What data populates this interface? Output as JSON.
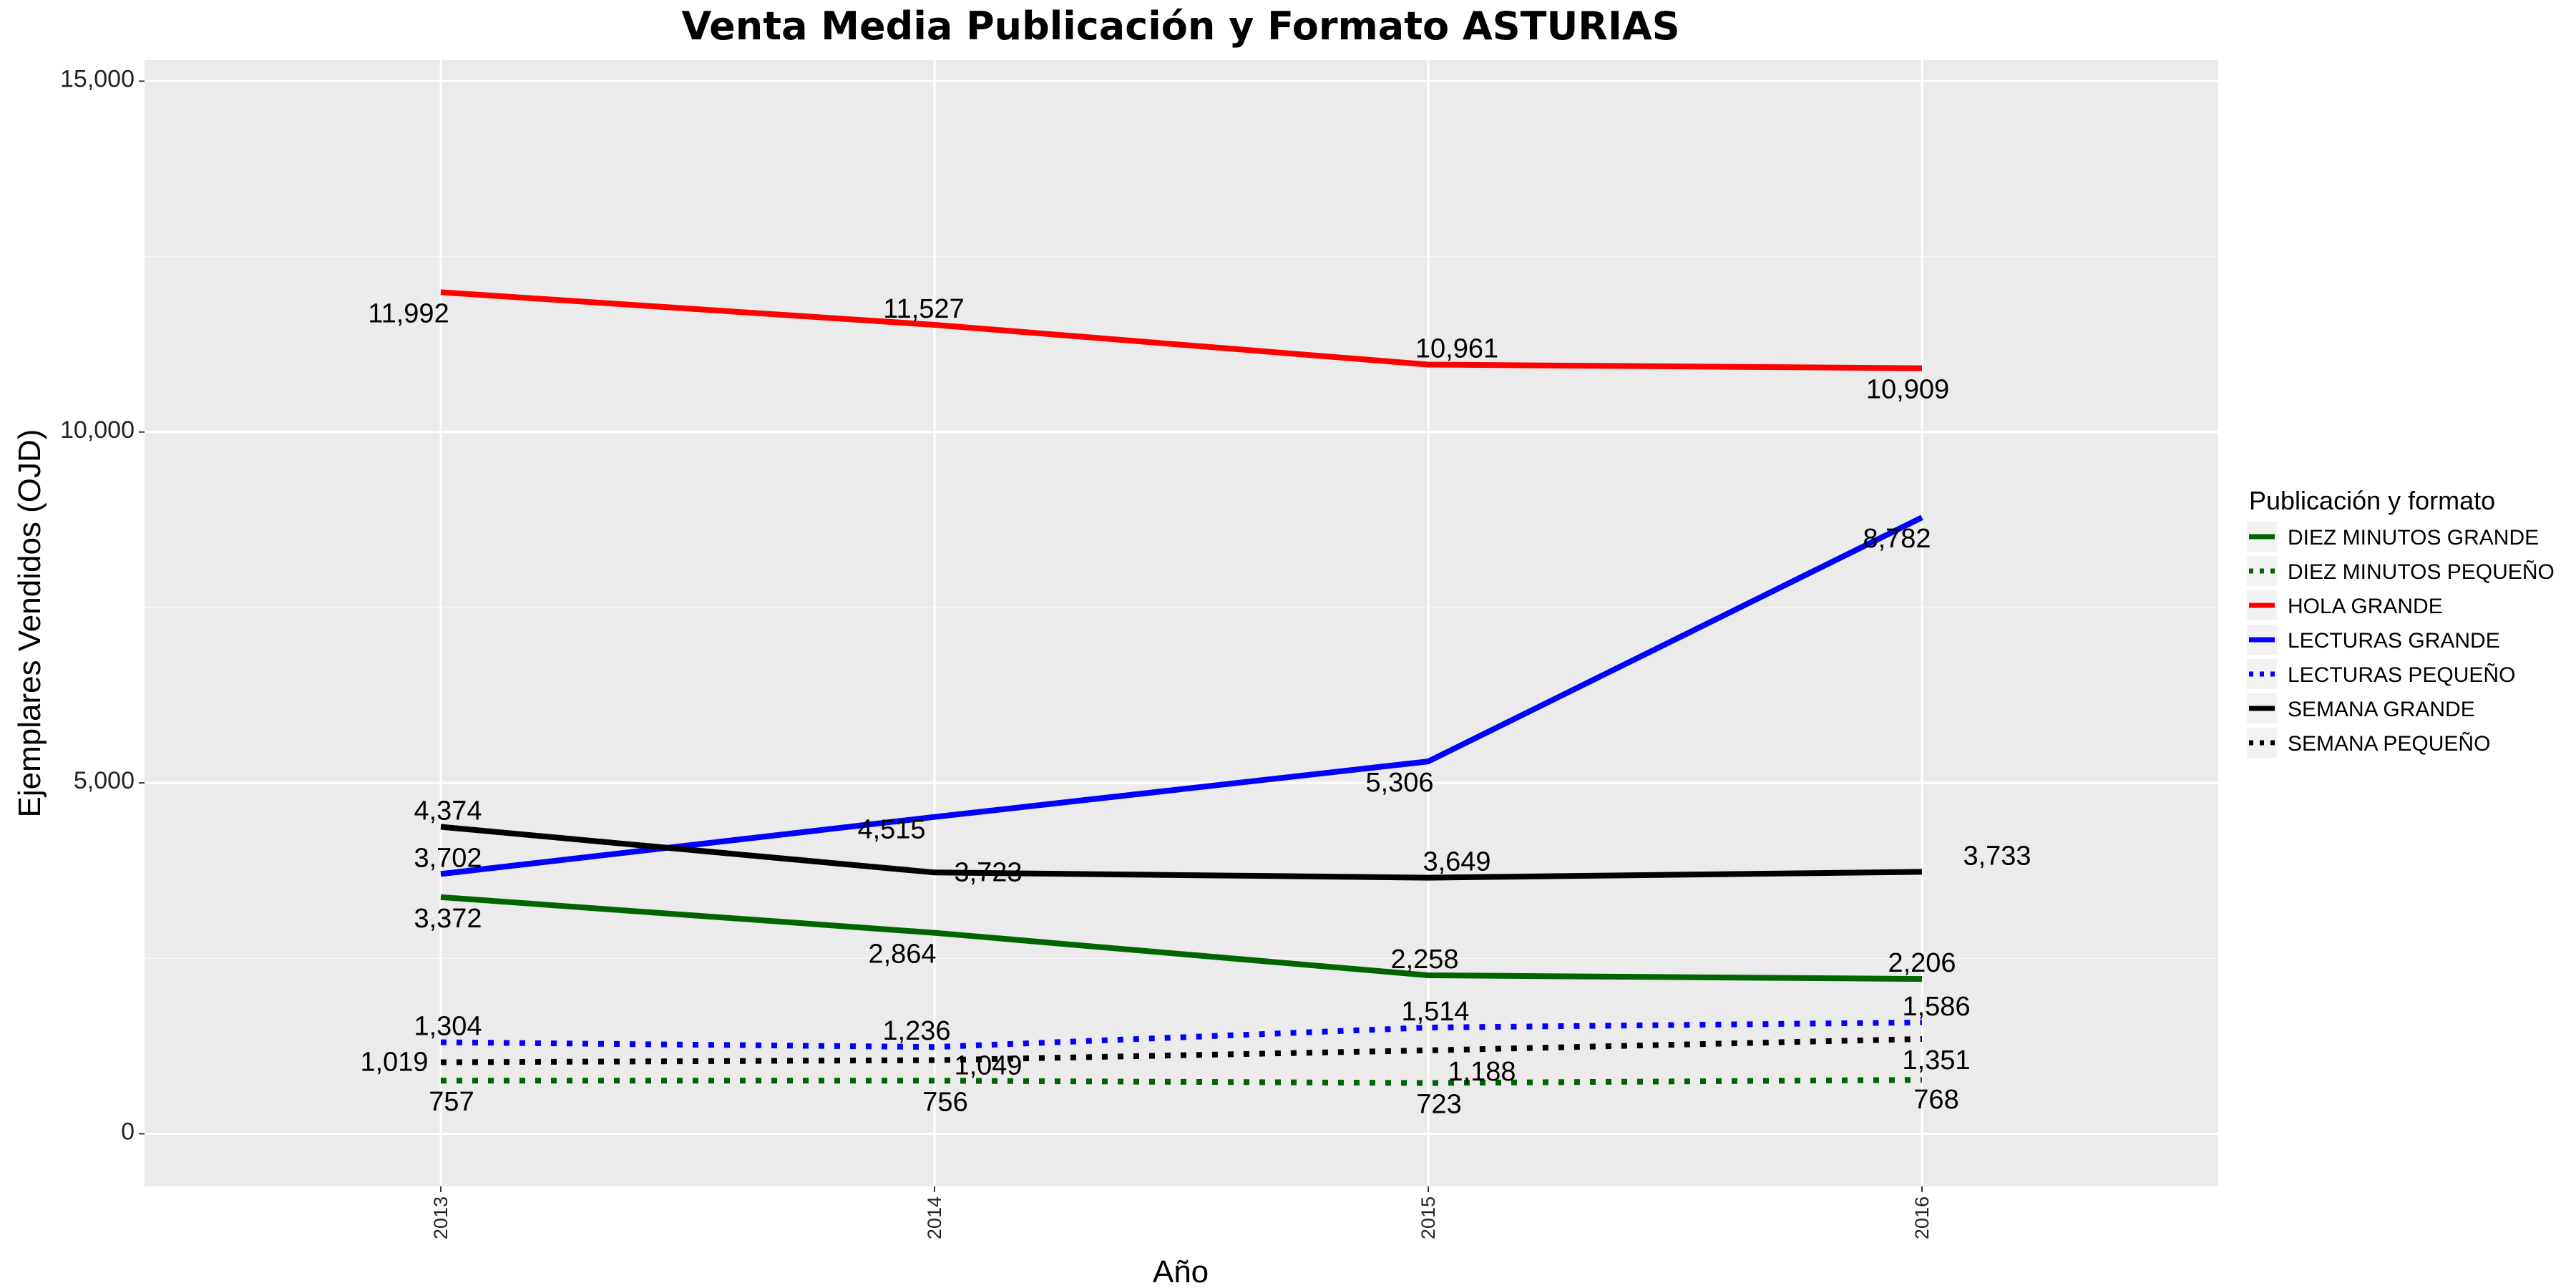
{
  "chart_data": {
    "type": "line",
    "title": "Venta Media Publicación y Formato  ASTURIAS",
    "xlabel": "Año",
    "ylabel": "Ejemplares Vendidos (OJD)",
    "x": [
      "2013",
      "2014",
      "2015",
      "2016"
    ],
    "xlim": [
      2012.4,
      2016.6
    ],
    "ylim": [
      -750,
      15300
    ],
    "yticks": [
      0,
      5000,
      10000,
      15000
    ],
    "ytick_labels": [
      "0",
      "5,000",
      "10,000",
      "15,000"
    ],
    "grid": true,
    "legend": {
      "title": "Publicación y formato",
      "position": "right"
    },
    "series": [
      {
        "name": "DIEZ MINUTOS GRANDE",
        "color": "#006400",
        "dash": "solid",
        "values": [
          3372,
          2864,
          2258,
          2206
        ],
        "labels": [
          "3,372",
          "2,864",
          "2,258",
          "2,206"
        ]
      },
      {
        "name": "DIEZ MINUTOS PEQUEÑO",
        "color": "#006400",
        "dash": "dotted",
        "values": [
          757,
          756,
          723,
          768
        ],
        "labels": [
          "757",
          "756",
          "723",
          "768"
        ]
      },
      {
        "name": "HOLA GRANDE",
        "color": "#ff0000",
        "dash": "solid",
        "values": [
          11992,
          11527,
          10961,
          10909
        ],
        "labels": [
          "11,992",
          "11,527",
          "10,961",
          "10,909"
        ]
      },
      {
        "name": "LECTURAS GRANDE",
        "color": "#0000ff",
        "dash": "solid",
        "values": [
          3702,
          4515,
          5306,
          8782
        ],
        "labels": [
          "3,702",
          "4,515",
          "5,306",
          "8,782"
        ]
      },
      {
        "name": "LECTURAS PEQUEÑO",
        "color": "#0000ff",
        "dash": "dotted",
        "values": [
          1304,
          1236,
          1514,
          1586
        ],
        "labels": [
          "1,304",
          "1,236",
          "1,514",
          "1,586"
        ]
      },
      {
        "name": "SEMANA GRANDE",
        "color": "#000000",
        "dash": "solid",
        "values": [
          4374,
          3723,
          3649,
          3733
        ],
        "labels": [
          "4,374",
          "3,723",
          "3,649",
          "3,733"
        ]
      },
      {
        "name": "SEMANA PEQUEÑO",
        "color": "#000000",
        "dash": "dotted",
        "values": [
          1019,
          1049,
          1188,
          1351
        ],
        "labels": [
          "1,019",
          "1,049",
          "1,188",
          "1,351"
        ]
      }
    ]
  }
}
